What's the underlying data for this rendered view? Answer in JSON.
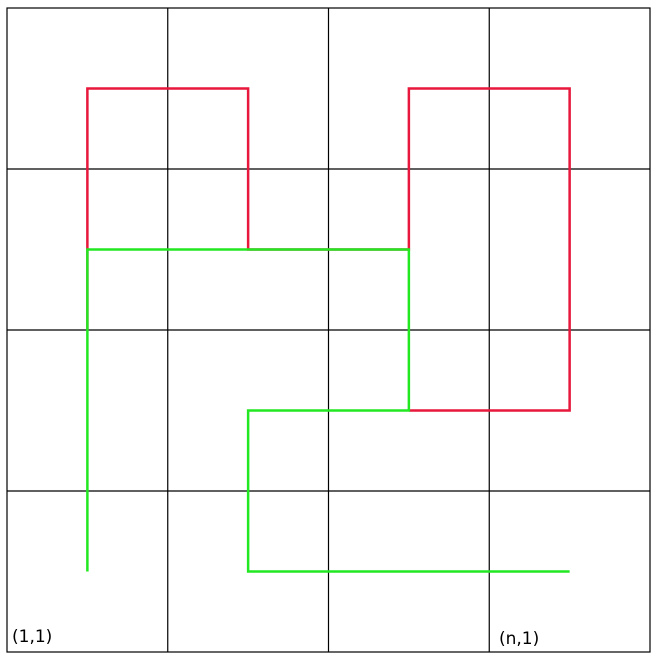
{
  "grid": {
    "rows": 4,
    "cols": 4,
    "line_color": "#000000"
  },
  "labels": {
    "bottom_left": "(1,1)",
    "bottom_right": "(n,1)"
  },
  "paths": [
    {
      "color": "#e8173c",
      "points": [
        [
          0.5,
          2.0
        ],
        [
          0.5,
          3.5
        ],
        [
          1.5,
          3.5
        ],
        [
          1.5,
          2.5
        ],
        [
          2.5,
          2.5
        ],
        [
          2.5,
          3.5
        ],
        [
          3.5,
          3.5
        ],
        [
          3.5,
          1.5
        ],
        [
          2.5,
          1.5
        ]
      ]
    },
    {
      "color": "#22e822",
      "points": [
        [
          0.5,
          0.5
        ],
        [
          0.5,
          2.5
        ],
        [
          2.5,
          2.5
        ],
        [
          2.5,
          1.5
        ],
        [
          1.5,
          1.5
        ],
        [
          1.5,
          0.5
        ],
        [
          3.5,
          0.5
        ]
      ]
    }
  ]
}
